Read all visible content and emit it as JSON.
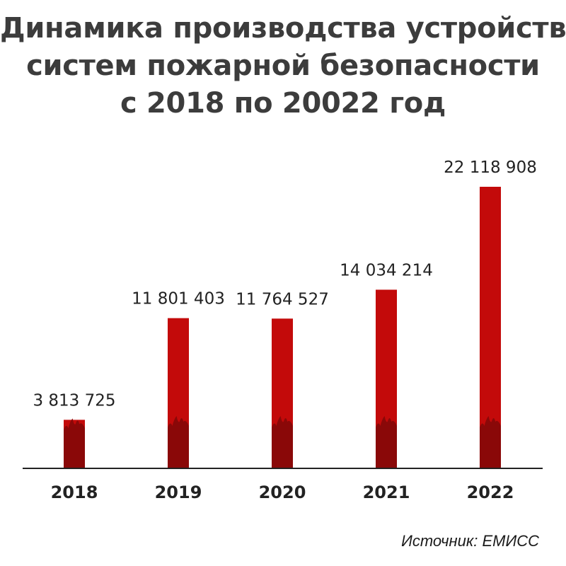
{
  "title_lines": [
    "Динамика производства устройств",
    "систем пожарной безопасности",
    "с 2018 по 20022 год"
  ],
  "source": "Источник: ЕМИСС",
  "colors": {
    "bar": "#c30a0a",
    "bar_flame": "#8a0808",
    "title": "#3c3c3c",
    "axis": "#222222"
  },
  "chart_data": {
    "type": "bar",
    "categories": [
      "2018",
      "2019",
      "2020",
      "2021",
      "2022"
    ],
    "values": [
      3813725,
      11801403,
      11764527,
      14034214,
      22118908
    ],
    "value_labels": [
      "3 813 725",
      "11 801 403",
      "11 764 527",
      "14 034 214",
      "22 118 908"
    ],
    "title": "Динамика производства устройств систем пожарной безопасности с 2018 по 20022 год",
    "xlabel": "",
    "ylabel": "",
    "ylim": [
      0,
      22118908
    ],
    "grid": false,
    "legend": "none"
  }
}
